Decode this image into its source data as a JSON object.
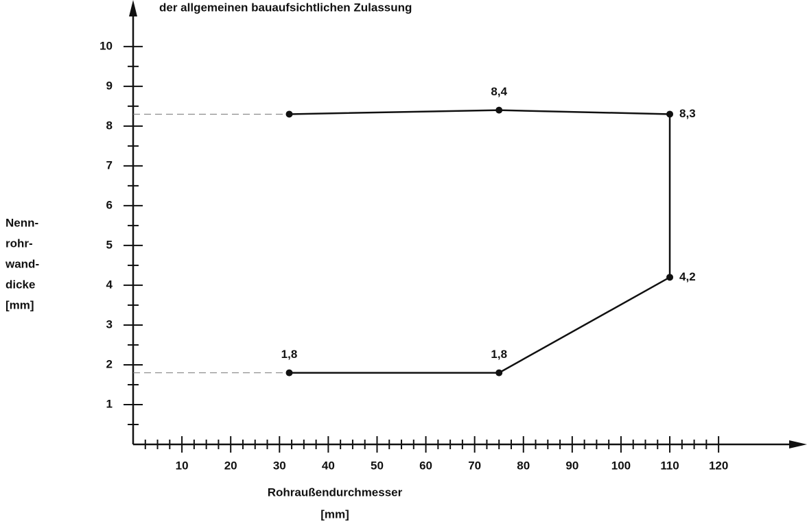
{
  "chart_data": {
    "type": "line",
    "title": "der allgemeinen bauaufsichtlichen Zulassung",
    "y_label": [
      "Nenn-",
      "rohr-",
      "wand-",
      "dicke",
      "[mm]"
    ],
    "x_label": [
      "Rohraußendurchmesser",
      "[mm]"
    ],
    "x": [
      32,
      75,
      110,
      110,
      75,
      32
    ],
    "series": [
      {
        "color": "#111111",
        "values": [
          8.3,
          8.4,
          8.3,
          4.2,
          1.8,
          1.8
        ],
        "value_labels": [
          null,
          "8,4",
          "8,3",
          "4,2",
          "1,8",
          "1,8"
        ]
      }
    ],
    "xlim": [
      0,
      137
    ],
    "ylim": [
      0,
      11.1
    ],
    "xticks": [
      10,
      20,
      30,
      40,
      50,
      60,
      70,
      80,
      90,
      100,
      110,
      120
    ],
    "xminorticks": [
      2.5,
      5,
      7.5,
      12.5,
      15,
      17.5,
      22.5,
      25,
      27.5,
      32.5,
      35,
      37.5,
      42.5,
      45,
      47.5,
      52.5,
      55,
      57.5,
      62.5,
      65,
      67.5,
      72.5,
      75,
      77.5,
      82.5,
      85,
      87.5,
      92.5,
      95,
      97.5,
      102.5,
      105,
      107.5,
      112.5,
      115,
      117.5
    ],
    "yticks": [
      1,
      2,
      3,
      4,
      5,
      6,
      7,
      8,
      9,
      10
    ],
    "yminorticks": [
      0.5,
      1.5,
      2.5,
      3.5,
      4.5,
      5.5,
      6.5,
      7.5,
      8.5,
      9.5
    ]
  }
}
